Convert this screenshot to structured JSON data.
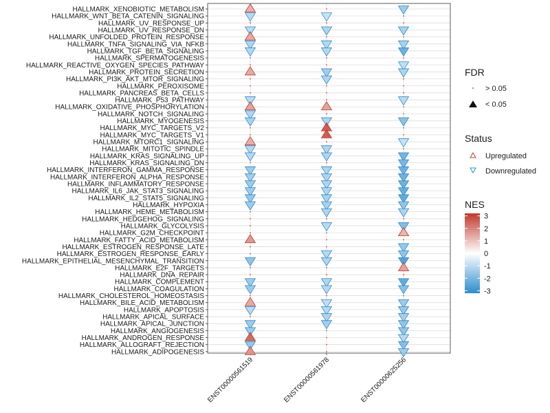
{
  "chart_data": {
    "type": "scatter",
    "title": "",
    "xlabel": "",
    "ylabel": "",
    "x_categories": [
      "ENST00000561519",
      "ENST00000561978",
      "ENST00000625256"
    ],
    "y_categories": [
      "HALLMARK_XENOBIOTIC_METABOLISM",
      "HALLMARK_WNT_BETA_CATENIN_SIGNALING",
      "HALLMARK_UV_RESPONSE_UP",
      "HALLMARK_UV_RESPONSE_DN",
      "HALLMARK_UNFOLDED_PROTEIN_RESPONSE",
      "HALLMARK_TNFA_SIGNALING_VIA_NFKB",
      "HALLMARK_TGF_BETA_SIGNALING",
      "HALLMARK_SPERMATOGENESIS",
      "HALLMARK_REACTIVE_OXYGEN_SPECIES_PATHWAY",
      "HALLMARK_PROTEIN_SECRETION",
      "HALLMARK_PI3K_AKT_MTOR_SIGNALING",
      "HALLMARK_PEROXISOME",
      "HALLMARK_PANCREAS_BETA_CELLS",
      "HALLMARK_P53_PATHWAY",
      "HALLMARK_OXIDATIVE_PHOSPHORYLATION",
      "HALLMARK_NOTCH_SIGNALING",
      "HALLMARK_MYOGENESIS",
      "HALLMARK_MYC_TARGETS_V2",
      "HALLMARK_MYC_TARGETS_V1",
      "HALLMARK_MTORC1_SIGNALING",
      "HALLMARK_MITOTIC_SPINDLE",
      "HALLMARK_KRAS_SIGNALING_UP",
      "HALLMARK_KRAS_SIGNALING_DN",
      "HALLMARK_INTERFERON_GAMMA_RESPONSE",
      "HALLMARK_INTERFERON_ALPHA_RESPONSE",
      "HALLMARK_INFLAMMATORY_RESPONSE",
      "HALLMARK_IL6_JAK_STAT3_SIGNALING",
      "HALLMARK_IL2_STAT5_SIGNALING",
      "HALLMARK_HYPOXIA",
      "HALLMARK_HEME_METABOLISM",
      "HALLMARK_HEDGEHOG_SIGNALING",
      "HALLMARK_GLYCOLYSIS",
      "HALLMARK_G2M_CHECKPOINT",
      "HALLMARK_FATTY_ACID_METABOLISM",
      "HALLMARK_ESTROGEN_RESPONSE_LATE",
      "HALLMARK_ESTROGEN_RESPONSE_EARLY",
      "HALLMARK_EPITHELIAL_MESENCHYMAL_TRANSITION",
      "HALLMARK_E2F_TARGETS",
      "HALLMARK_DNA_REPAIR",
      "HALLMARK_COMPLEMENT",
      "HALLMARK_COAGULATION",
      "HALLMARK_CHOLESTEROL_HOMEOSTASIS",
      "HALLMARK_BILE_ACID_METABOLISM",
      "HALLMARK_APOPTOSIS",
      "HALLMARK_APICAL_SURFACE",
      "HALLMARK_APICAL_JUNCTION",
      "HALLMARK_ANGIOGENESIS",
      "HALLMARK_ANDROGEN_RESPONSE",
      "HALLMARK_ALLOGRAFT_REJECTION",
      "HALLMARK_ADIPOGENESIS"
    ],
    "series": [
      {
        "name": "ENST00000561519",
        "nes": [
          1.4,
          -1.2,
          0,
          -1.1,
          1.5,
          -1.3,
          -1.2,
          0,
          0,
          1.5,
          0,
          0,
          0,
          -1.1,
          1.6,
          -1.3,
          -1.4,
          0,
          0,
          1.4,
          -1.2,
          -1.2,
          0,
          -1.6,
          -1.5,
          -1.6,
          -1.6,
          -1.7,
          -1.6,
          0,
          0,
          0,
          0,
          1.8,
          0,
          0,
          -1.8,
          0,
          0,
          -1.6,
          -1.6,
          0,
          1.5,
          -1.1,
          0,
          -1.6,
          -1.6,
          2.6,
          -1.7,
          1.8
        ],
        "fdr_sig": [
          1,
          1,
          0,
          1,
          1,
          1,
          1,
          0,
          0,
          1,
          0,
          0,
          0,
          1,
          1,
          1,
          1,
          0,
          0,
          1,
          1,
          1,
          0,
          1,
          1,
          1,
          1,
          1,
          1,
          0,
          0,
          0,
          0,
          1,
          0,
          0,
          1,
          0,
          0,
          1,
          1,
          0,
          1,
          1,
          0,
          1,
          1,
          1,
          1,
          1
        ]
      },
      {
        "name": "ENST00000561978",
        "nes": [
          0,
          -0.9,
          0,
          -1.3,
          0,
          -1.2,
          -1.2,
          0,
          0,
          -1.5,
          -1.3,
          0,
          0,
          0,
          1.6,
          0,
          -1.3,
          2.9,
          2.9,
          0,
          -1.3,
          -1.3,
          0,
          -1.3,
          -1.3,
          -1.3,
          -1.3,
          -1.4,
          -1.4,
          -1.3,
          0,
          -1.1,
          0,
          0,
          0,
          -1.2,
          -1.3,
          0,
          0,
          -1.3,
          -1.2,
          0,
          -1.0,
          -1.2,
          -1.3,
          -1.5,
          0,
          0,
          0,
          0
        ],
        "fdr_sig": [
          0,
          1,
          0,
          1,
          0,
          1,
          1,
          0,
          0,
          1,
          1,
          0,
          0,
          0,
          1,
          0,
          1,
          1,
          1,
          0,
          1,
          1,
          0,
          1,
          1,
          1,
          1,
          1,
          1,
          1,
          0,
          1,
          0,
          0,
          0,
          1,
          1,
          0,
          0,
          1,
          1,
          0,
          1,
          1,
          1,
          1,
          0,
          0,
          0,
          0
        ]
      },
      {
        "name": "ENST00000625256",
        "nes": [
          -1.6,
          0,
          0,
          -1.4,
          0,
          -1.4,
          -2.4,
          0,
          -1.0,
          -1.3,
          0,
          0,
          0,
          -1.1,
          0,
          0,
          -1.9,
          0,
          0,
          -0.9,
          0,
          -2.3,
          -2.2,
          -2.4,
          -2.4,
          -2.4,
          -2.5,
          -2.6,
          -1.8,
          -1.3,
          0,
          -2.0,
          1.3,
          0,
          -1.7,
          -1.8,
          -2.8,
          1.6,
          0,
          -2.6,
          -2.0,
          0,
          -1.6,
          -1.7,
          -1.5,
          -1.8,
          -1.8,
          -1.2,
          -2.0,
          -1.5
        ],
        "fdr_sig": [
          1,
          0,
          0,
          1,
          0,
          1,
          1,
          0,
          1,
          1,
          0,
          0,
          0,
          1,
          0,
          0,
          1,
          0,
          0,
          1,
          0,
          1,
          1,
          1,
          1,
          1,
          1,
          1,
          1,
          1,
          0,
          1,
          1,
          0,
          1,
          1,
          1,
          1,
          0,
          1,
          1,
          0,
          1,
          1,
          1,
          1,
          1,
          1,
          1,
          1
        ]
      }
    ],
    "legend": {
      "fdr": {
        "title": "FDR",
        "items": [
          "> 0.05",
          "< 0.05"
        ]
      },
      "status": {
        "title": "Status",
        "items": [
          "Upregulated",
          "Downregulated"
        ]
      },
      "nes": {
        "title": "NES",
        "ticks": [
          3,
          2,
          1,
          0,
          -1,
          -2,
          -3
        ],
        "range": [
          -3.2,
          3.2
        ]
      }
    },
    "colors": {
      "up": "#cb3a2c",
      "down": "#2c8fcf",
      "mid": "#ffffff",
      "grid": "#dcdcdc",
      "border": "#333333"
    },
    "grid": true,
    "legend_position": "right"
  }
}
